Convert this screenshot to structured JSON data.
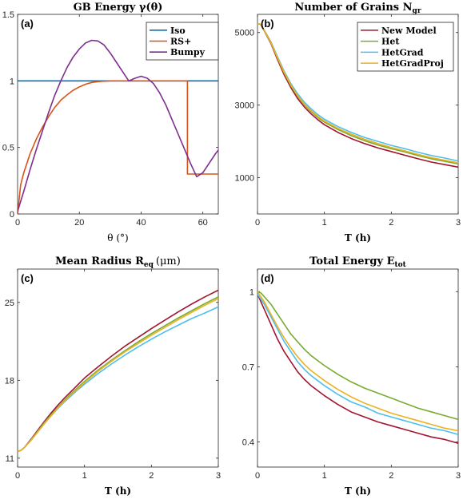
{
  "chart_data": [
    {
      "type": "line",
      "title": "GB Energy γ(θ)",
      "panel_label": "(a)",
      "xlabel": "θ (°)",
      "ylabel": "",
      "xlim": [
        0,
        65
      ],
      "ylim": [
        0,
        1.5
      ],
      "xticks": [
        0,
        20,
        40,
        60
      ],
      "xtick_labels": [
        "0",
        "20",
        "40",
        "60"
      ],
      "yticks": [
        0,
        0.5,
        1,
        1.5
      ],
      "ytick_labels": [
        "0",
        "0.5",
        "1",
        "1.5"
      ],
      "legend_position": "top-right",
      "series": [
        {
          "name": "Iso",
          "color": "#0072BD",
          "x": [
            0,
            65
          ],
          "y": [
            1,
            1
          ]
        },
        {
          "name": "RS+",
          "color": "#D95319",
          "x": [
            0,
            1,
            2,
            4,
            6,
            8,
            10,
            12,
            14,
            16,
            18,
            20,
            22,
            24,
            26,
            28,
            30,
            32,
            34,
            36,
            40,
            45,
            50,
            55,
            55,
            60,
            65
          ],
          "y": [
            0,
            0.22,
            0.31,
            0.45,
            0.56,
            0.65,
            0.73,
            0.8,
            0.855,
            0.895,
            0.93,
            0.955,
            0.975,
            0.988,
            0.995,
            0.998,
            1,
            1,
            1,
            1,
            1,
            1,
            1,
            1,
            0.3,
            0.3,
            0.3
          ]
        },
        {
          "name": "Bumpy",
          "color": "#7E2F8E",
          "x": [
            0,
            2,
            4,
            6,
            8,
            10,
            12,
            14,
            16,
            18,
            20,
            22,
            24,
            26,
            28,
            30,
            32,
            34,
            36,
            38,
            40,
            42,
            44,
            46,
            48,
            50,
            52,
            54,
            56,
            58,
            60,
            62,
            64,
            65
          ],
          "y": [
            0.02,
            0.17,
            0.33,
            0.48,
            0.62,
            0.76,
            0.89,
            1.0,
            1.1,
            1.18,
            1.24,
            1.285,
            1.305,
            1.3,
            1.27,
            1.21,
            1.14,
            1.07,
            1.0,
            1.02,
            1.035,
            1.02,
            0.98,
            0.91,
            0.82,
            0.71,
            0.6,
            0.49,
            0.38,
            0.28,
            0.31,
            0.38,
            0.45,
            0.48
          ]
        }
      ]
    },
    {
      "type": "line",
      "title": "Number of Grains N",
      "title_subscript": "gr",
      "panel_label": "(b)",
      "xlabel": "T (h)",
      "ylabel": "",
      "xlim": [
        0,
        3
      ],
      "ylim": [
        0,
        5500
      ],
      "xticks": [
        0,
        1,
        2,
        3
      ],
      "xtick_labels": [
        "0",
        "1",
        "2",
        "3"
      ],
      "yticks": [
        1000,
        3000,
        5000
      ],
      "ytick_labels": [
        "1000",
        "3000",
        "5000"
      ],
      "legend_position": "top-right",
      "x": [
        0,
        0.05,
        0.1,
        0.2,
        0.3,
        0.4,
        0.5,
        0.6,
        0.7,
        0.8,
        0.9,
        1.0,
        1.2,
        1.4,
        1.6,
        1.8,
        2.0,
        2.2,
        2.4,
        2.6,
        2.8,
        3.0
      ],
      "series": [
        {
          "name": "New Model",
          "color": "#A2142F",
          "values": [
            5250,
            5220,
            5050,
            4700,
            4250,
            3830,
            3480,
            3180,
            2950,
            2760,
            2600,
            2460,
            2250,
            2080,
            1940,
            1820,
            1720,
            1620,
            1520,
            1430,
            1360,
            1290
          ]
        },
        {
          "name": "Het",
          "color": "#77AC30",
          "values": [
            5250,
            5220,
            5060,
            4720,
            4290,
            3880,
            3530,
            3240,
            3010,
            2820,
            2660,
            2530,
            2330,
            2160,
            2020,
            1900,
            1800,
            1710,
            1610,
            1520,
            1450,
            1380
          ]
        },
        {
          "name": "HetGrad",
          "color": "#4DBEEE",
          "values": [
            5250,
            5220,
            5070,
            4750,
            4330,
            3930,
            3590,
            3310,
            3080,
            2900,
            2740,
            2610,
            2410,
            2250,
            2110,
            2000,
            1890,
            1800,
            1700,
            1610,
            1540,
            1460
          ]
        },
        {
          "name": "HetGradProj",
          "color": "#EDB120",
          "values": [
            5250,
            5220,
            5060,
            4730,
            4300,
            3900,
            3550,
            3260,
            3030,
            2850,
            2690,
            2560,
            2360,
            2200,
            2060,
            1940,
            1830,
            1740,
            1640,
            1550,
            1480,
            1410
          ]
        }
      ]
    },
    {
      "type": "line",
      "title": "Mean Radius R",
      "title_subscript": "eq",
      "title_unit": "(μm)",
      "panel_label": "(c)",
      "xlabel": "T (h)",
      "ylabel": "",
      "xlim": [
        0,
        3
      ],
      "ylim": [
        10.2,
        28
      ],
      "xticks": [
        0,
        1,
        2,
        3
      ],
      "xtick_labels": [
        "0",
        "1",
        "2",
        "3"
      ],
      "yticks": [
        11,
        18,
        25
      ],
      "ytick_labels": [
        "11",
        "18",
        "25"
      ],
      "x": [
        0,
        0.05,
        0.1,
        0.2,
        0.3,
        0.4,
        0.5,
        0.6,
        0.7,
        0.8,
        0.9,
        1.0,
        1.2,
        1.4,
        1.6,
        1.8,
        2.0,
        2.2,
        2.4,
        2.6,
        2.8,
        3.0
      ],
      "series": [
        {
          "name": "New Model",
          "color": "#A2142F",
          "values": [
            11.6,
            11.7,
            11.95,
            12.7,
            13.5,
            14.3,
            15.05,
            15.75,
            16.4,
            17.0,
            17.6,
            18.2,
            19.2,
            20.15,
            21.05,
            21.85,
            22.65,
            23.4,
            24.15,
            24.85,
            25.5,
            26.1
          ]
        },
        {
          "name": "Het",
          "color": "#77AC30",
          "values": [
            11.6,
            11.7,
            11.95,
            12.65,
            13.4,
            14.2,
            14.9,
            15.55,
            16.2,
            16.8,
            17.35,
            17.9,
            18.9,
            19.8,
            20.65,
            21.45,
            22.2,
            22.9,
            23.6,
            24.25,
            24.9,
            25.5
          ]
        },
        {
          "name": "HetGrad",
          "color": "#4DBEEE",
          "values": [
            11.6,
            11.7,
            11.95,
            12.6,
            13.35,
            14.1,
            14.8,
            15.45,
            16.05,
            16.6,
            17.15,
            17.65,
            18.6,
            19.45,
            20.25,
            21.0,
            21.7,
            22.35,
            22.95,
            23.55,
            24.05,
            24.6
          ]
        },
        {
          "name": "HetGradProj",
          "color": "#EDB120",
          "values": [
            11.6,
            11.7,
            11.95,
            12.6,
            13.35,
            14.1,
            14.8,
            15.5,
            16.1,
            16.7,
            17.25,
            17.8,
            18.8,
            19.7,
            20.55,
            21.3,
            22.05,
            22.75,
            23.45,
            24.1,
            24.75,
            25.35
          ]
        }
      ]
    },
    {
      "type": "line",
      "title": "Total Energy E",
      "title_subscript": "tot",
      "panel_label": "(d)",
      "xlabel": "T (h)",
      "ylabel": "",
      "xlim": [
        0,
        3
      ],
      "ylim": [
        0.3,
        1.09
      ],
      "xticks": [
        0,
        1,
        2,
        3
      ],
      "xtick_labels": [
        "0",
        "1",
        "2",
        "3"
      ],
      "yticks": [
        0.4,
        0.7,
        1
      ],
      "ytick_labels": [
        "0.4",
        "0.7",
        "1"
      ],
      "x": [
        0,
        0.05,
        0.1,
        0.2,
        0.3,
        0.4,
        0.5,
        0.6,
        0.7,
        0.8,
        0.9,
        1.0,
        1.2,
        1.4,
        1.6,
        1.8,
        2.0,
        2.2,
        2.4,
        2.6,
        2.8,
        3.0
      ],
      "series": [
        {
          "name": "New Model",
          "color": "#A2142F",
          "values": [
            0.99,
            0.96,
            0.93,
            0.87,
            0.81,
            0.76,
            0.72,
            0.68,
            0.65,
            0.625,
            0.605,
            0.585,
            0.55,
            0.52,
            0.5,
            0.48,
            0.465,
            0.45,
            0.435,
            0.42,
            0.41,
            0.395
          ]
        },
        {
          "name": "Het",
          "color": "#77AC30",
          "values": [
            1.0,
            0.995,
            0.98,
            0.95,
            0.91,
            0.87,
            0.83,
            0.8,
            0.77,
            0.745,
            0.725,
            0.705,
            0.67,
            0.64,
            0.615,
            0.595,
            0.575,
            0.555,
            0.535,
            0.52,
            0.505,
            0.49
          ]
        },
        {
          "name": "HetGrad",
          "color": "#4DBEEE",
          "values": [
            0.99,
            0.97,
            0.95,
            0.9,
            0.85,
            0.8,
            0.76,
            0.72,
            0.69,
            0.665,
            0.645,
            0.625,
            0.59,
            0.56,
            0.54,
            0.515,
            0.5,
            0.485,
            0.47,
            0.455,
            0.445,
            0.43
          ]
        },
        {
          "name": "HetGradProj",
          "color": "#EDB120",
          "values": [
            1.0,
            0.98,
            0.96,
            0.91,
            0.86,
            0.815,
            0.775,
            0.74,
            0.71,
            0.685,
            0.665,
            0.645,
            0.61,
            0.58,
            0.555,
            0.535,
            0.515,
            0.5,
            0.485,
            0.47,
            0.455,
            0.445
          ]
        }
      ]
    }
  ]
}
